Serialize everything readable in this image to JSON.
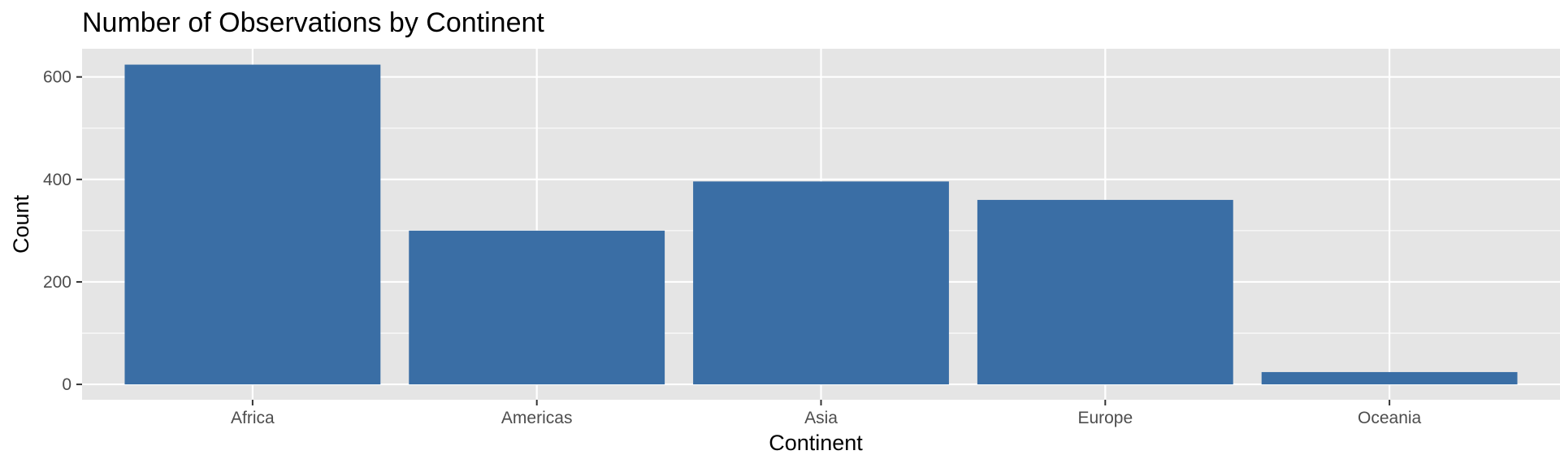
{
  "chart_data": {
    "type": "bar",
    "title": "Number of Observations by Continent",
    "xlabel": "Continent",
    "ylabel": "Count",
    "categories": [
      "Africa",
      "Americas",
      "Asia",
      "Europe",
      "Oceania"
    ],
    "values": [
      624,
      300,
      396,
      360,
      24
    ],
    "ylim": [
      -30,
      655
    ],
    "yticks": [
      0,
      200,
      400,
      600
    ],
    "grid": true,
    "legend": "none",
    "colors": {
      "bar": "#3a6ea5",
      "panel": "#e5e5e5",
      "grid": "#ffffff",
      "tick_text": "#4d4d4d"
    }
  }
}
